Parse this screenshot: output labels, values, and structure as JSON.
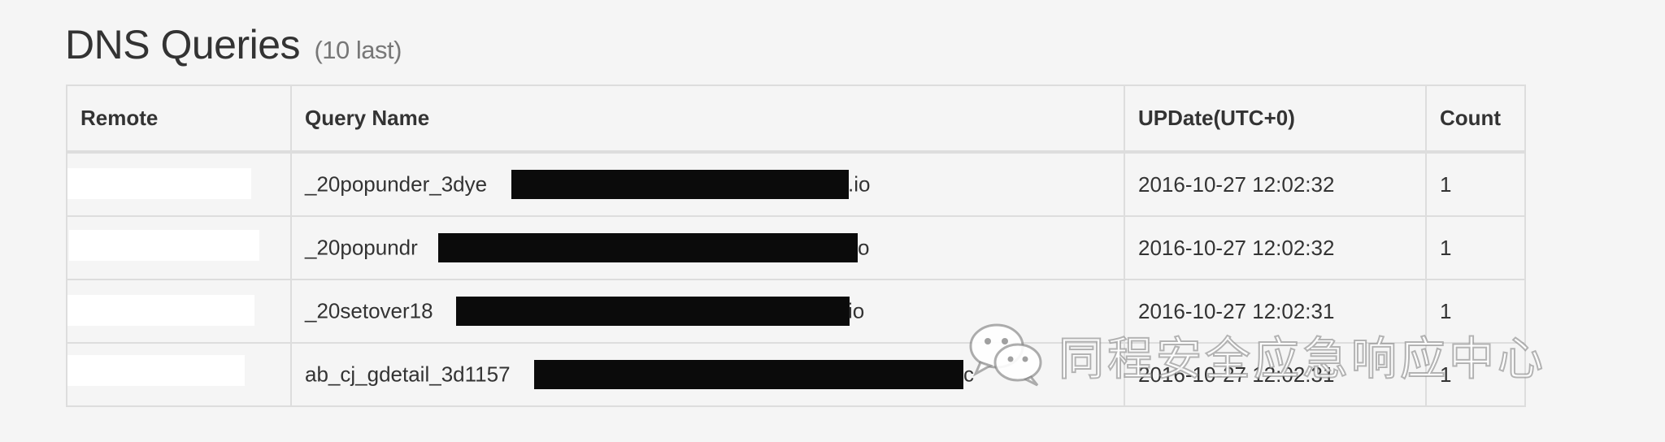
{
  "title": "DNS Queries",
  "subtitle": "(10 last)",
  "table": {
    "headers": {
      "remote": "Remote",
      "query": "Query Name",
      "date": "UPDate(UTC+0)",
      "count": "Count"
    },
    "rows": [
      {
        "remote": "",
        "query_prefix": "_20popunder_3dye",
        "query_suffix": ".io",
        "date": "2016-10-27 12:02:32",
        "count": "1"
      },
      {
        "remote": "",
        "query_prefix": "_20popundr",
        "query_suffix": "o",
        "date": "2016-10-27 12:02:32",
        "count": "1"
      },
      {
        "remote": "",
        "query_prefix": "_20setover18",
        "query_suffix": "io",
        "date": "2016-10-27 12:02:31",
        "count": "1"
      },
      {
        "remote": "",
        "query_prefix": "ab_cj_gdetail_3d1157",
        "query_suffix": "c",
        "date": "2016-10-27 12:02:31",
        "count": "1"
      }
    ]
  },
  "watermark": {
    "text": "同程安全应急响应中心",
    "icon": "wechat-icon"
  },
  "colors": {
    "background": "#f5f5f5",
    "border": "#dddddd",
    "redaction": "#0b0b0b"
  }
}
